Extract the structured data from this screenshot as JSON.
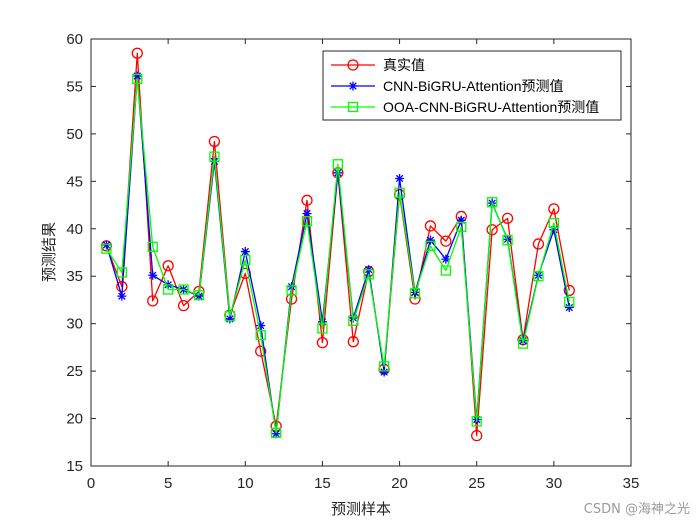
{
  "chart_data": {
    "type": "line",
    "title": "",
    "xlabel": "预测样本",
    "ylabel": "预测结果",
    "xlim": [
      0,
      35
    ],
    "ylim": [
      15,
      60
    ],
    "xticks": [
      0,
      5,
      10,
      15,
      20,
      25,
      30,
      35
    ],
    "yticks": [
      15,
      20,
      25,
      30,
      35,
      40,
      45,
      50,
      55,
      60
    ],
    "grid": false,
    "legend_position": "top-right",
    "x": [
      1,
      2,
      3,
      4,
      5,
      6,
      7,
      8,
      9,
      10,
      11,
      12,
      13,
      14,
      15,
      16,
      17,
      18,
      19,
      20,
      21,
      22,
      23,
      24,
      25,
      26,
      27,
      28,
      29,
      30,
      31
    ],
    "series": [
      {
        "name": "真实值",
        "color": "#ff0000",
        "marker": "circle",
        "values": [
          38.2,
          33.9,
          58.5,
          32.4,
          36.1,
          31.9,
          33.4,
          49.2,
          30.9,
          35.3,
          27.1,
          19.2,
          32.6,
          43.0,
          28.0,
          45.9,
          28.1,
          35.5,
          25.2,
          43.6,
          32.6,
          40.3,
          38.7,
          41.3,
          18.2,
          39.9,
          41.1,
          28.3,
          38.4,
          42.1,
          33.5
        ]
      },
      {
        "name": "CNN-BiGRU-Attention预测值",
        "color": "#0000ff",
        "marker": "star",
        "values": [
          38.3,
          32.9,
          56.1,
          35.1,
          34.1,
          33.6,
          32.9,
          47.1,
          30.5,
          37.6,
          29.8,
          18.4,
          33.9,
          41.6,
          30.2,
          45.9,
          30.6,
          35.7,
          24.9,
          45.3,
          33.3,
          38.8,
          36.8,
          40.9,
          19.9,
          42.7,
          38.9,
          28.2,
          35.1,
          39.9,
          31.7
        ]
      },
      {
        "name": "OOA-CNN-BiGRU-Attention预测值",
        "color": "#00ff00",
        "marker": "square",
        "values": [
          37.9,
          35.4,
          55.8,
          38.1,
          33.6,
          33.6,
          33.0,
          47.6,
          30.8,
          36.7,
          28.8,
          18.5,
          33.5,
          40.8,
          29.5,
          46.8,
          30.3,
          35.2,
          25.5,
          43.8,
          33.2,
          38.2,
          35.6,
          40.2,
          19.7,
          42.8,
          38.8,
          27.9,
          35.0,
          40.6,
          32.3
        ]
      }
    ]
  },
  "watermark": "CSDN @海神之光"
}
